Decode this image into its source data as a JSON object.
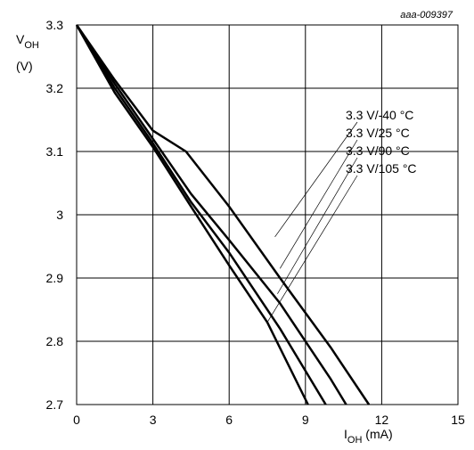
{
  "figure_id": "aaa-009397",
  "chart_data": {
    "type": "line",
    "xlabel_main": "I",
    "xlabel_sub": "OH",
    "xlabel_unit": " (mA)",
    "ylabel_main": "V",
    "ylabel_sub": "OH",
    "ylabel_unit": "(V)",
    "xlim": [
      0,
      15
    ],
    "ylim": [
      2.7,
      3.3
    ],
    "xticks": [
      0,
      3,
      6,
      9,
      12,
      15
    ],
    "yticks": [
      2.7,
      2.8,
      2.9,
      3,
      3.1,
      3.2,
      3.3
    ],
    "xtick_labels": [
      "0",
      "3",
      "6",
      "9",
      "12",
      "15"
    ],
    "ytick_labels": [
      "2.7",
      "2.8",
      "2.9",
      "3",
      "3.1",
      "3.2",
      "3.3"
    ],
    "grid": true,
    "series": [
      {
        "name": "3.3 V/-40 °C",
        "x": [
          0,
          1.5,
          3,
          4.3,
          6,
          8,
          10,
          11.5
        ],
        "y": [
          3.3,
          3.213,
          3.133,
          3.1,
          3.013,
          2.9,
          2.79,
          2.7
        ]
      },
      {
        "name": "3.3 V/25 °C",
        "x": [
          0,
          1.5,
          3,
          4.5,
          6,
          8,
          10,
          10.6
        ],
        "y": [
          3.3,
          3.207,
          3.12,
          3.033,
          2.96,
          2.86,
          2.74,
          2.7
        ]
      },
      {
        "name": "3.3 V/90 °C",
        "x": [
          0,
          1.5,
          3,
          4.5,
          6,
          8,
          9.8
        ],
        "y": [
          3.3,
          3.2,
          3.113,
          3.02,
          2.94,
          2.82,
          2.7
        ]
      },
      {
        "name": "3.3 V/105 °C",
        "x": [
          0,
          1.5,
          3,
          4.5,
          6,
          7.5,
          9.1
        ],
        "y": [
          3.3,
          3.193,
          3.107,
          3.013,
          2.92,
          2.83,
          2.7
        ]
      }
    ]
  }
}
